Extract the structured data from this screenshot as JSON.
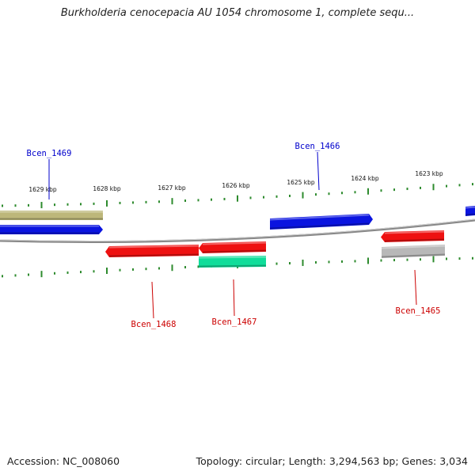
{
  "title": "Burkholderia cenocepacia AU 1054 chromosome 1, complete sequ...",
  "accession": "Accession: NC_008060",
  "topology": "Topology: circular; Length: 3,294,563 bp; Genes: 3,034",
  "colors": {
    "backbone": "#888888",
    "tick": "#2e8b2e",
    "label_forward": "#0000cc",
    "label_reverse": "#cc0000",
    "blue": "#0a14e0",
    "red": "#ee1111",
    "olive": "#bdb77a",
    "green": "#10dd9a",
    "gray": "#b8b8b8"
  },
  "ticks": [
    {
      "label": "1629 kbp"
    },
    {
      "label": "1628 kbp"
    },
    {
      "label": "1627 kbp"
    },
    {
      "label": "1626 kbp"
    },
    {
      "label": "1625 kbp"
    },
    {
      "label": "1624 kbp"
    },
    {
      "label": "1623 kbp"
    }
  ],
  "gene_labels": [
    {
      "name": "Bcen_1469",
      "strand": "forward"
    },
    {
      "name": "Bcen_1466",
      "strand": "forward"
    },
    {
      "name": "Bcen_1468",
      "strand": "reverse"
    },
    {
      "name": "Bcen_1467",
      "strand": "reverse"
    },
    {
      "name": "Bcen_1465",
      "strand": "reverse"
    }
  ],
  "features": [
    {
      "name": "olive-feature-left",
      "color": "olive"
    },
    {
      "name": "blue-feature-bcen-1469",
      "color": "blue"
    },
    {
      "name": "blue-feature-bcen-1466",
      "color": "blue"
    },
    {
      "name": "blue-feature-right-edge",
      "color": "blue"
    },
    {
      "name": "red-feature-bcen-1468",
      "color": "red"
    },
    {
      "name": "red-feature-bcen-1467",
      "color": "red"
    },
    {
      "name": "green-feature-bcen-1467",
      "color": "green"
    },
    {
      "name": "red-feature-bcen-1465",
      "color": "red"
    },
    {
      "name": "gray-feature-bcen-1465",
      "color": "gray"
    }
  ]
}
